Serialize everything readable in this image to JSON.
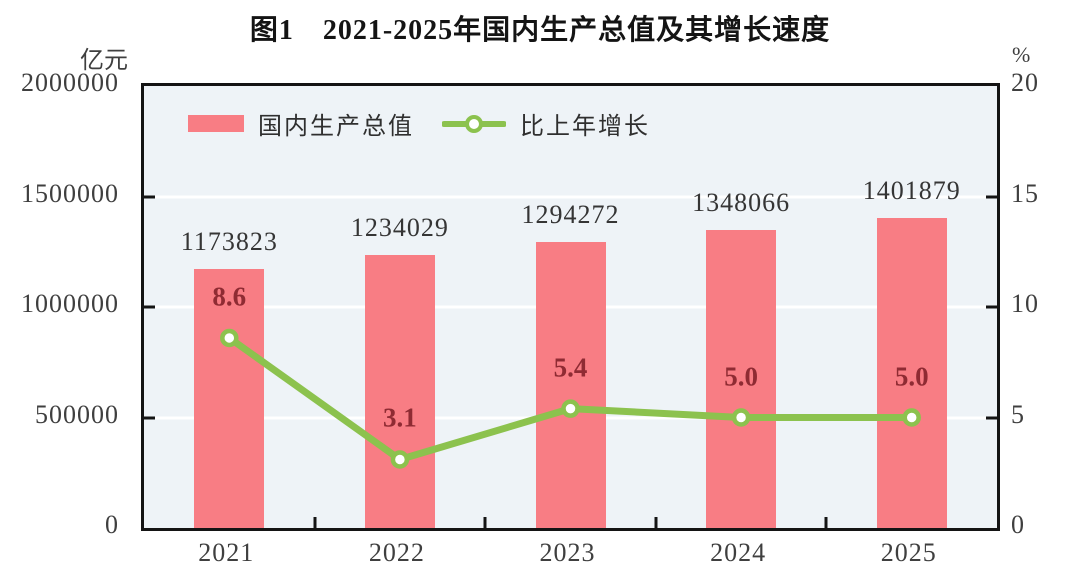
{
  "title": "图1　2021-2025年国内生产总值及其增长速度",
  "left_axis": {
    "unit": "亿元",
    "ticks": [
      "2000000",
      "1500000",
      "1000000",
      "500000",
      "0"
    ]
  },
  "right_axis": {
    "unit": "%",
    "ticks": [
      "20",
      "15",
      "10",
      "5",
      "0"
    ]
  },
  "legend": [
    {
      "label": "国内生产总值",
      "type": "bar"
    },
    {
      "label": "比上年增长",
      "type": "line"
    }
  ],
  "colors": {
    "bar": "#f87d84",
    "line": "#8cc24e",
    "marker_fill": "#ffffff",
    "plot_bg": "#eef3f7",
    "grid": "#ffffff",
    "growth_label": "#8f2b33"
  },
  "chart_data": {
    "type": "bar",
    "subtype": "bar+line-dual-axis",
    "title": "图1　2021-2025年国内生产总值及其增长速度",
    "categories": [
      "2021",
      "2022",
      "2023",
      "2024",
      "2025"
    ],
    "series": [
      {
        "name": "国内生产总值",
        "type": "bar",
        "axis": "left",
        "values": [
          1173823,
          1234029,
          1294272,
          1348066,
          1401879
        ],
        "labels": [
          "1173823",
          "1234029",
          "1294272",
          "1348066",
          "1401879"
        ]
      },
      {
        "name": "比上年增长",
        "type": "line",
        "axis": "right",
        "values": [
          8.6,
          3.1,
          5.4,
          5.0,
          5.0
        ],
        "labels": [
          "8.6",
          "3.1",
          "5.4",
          "5.0",
          "5.0"
        ]
      }
    ],
    "ylabel_left": "亿元",
    "ylabel_right": "%",
    "ylim_left": [
      0,
      2000000
    ],
    "ylim_right": [
      0,
      20
    ],
    "yticks_left": [
      0,
      500000,
      1000000,
      1500000,
      2000000
    ],
    "yticks_right": [
      0,
      5,
      10,
      15,
      20
    ],
    "grid": "horizontal white lines at major ticks",
    "legend_position": "top-inside-left"
  }
}
